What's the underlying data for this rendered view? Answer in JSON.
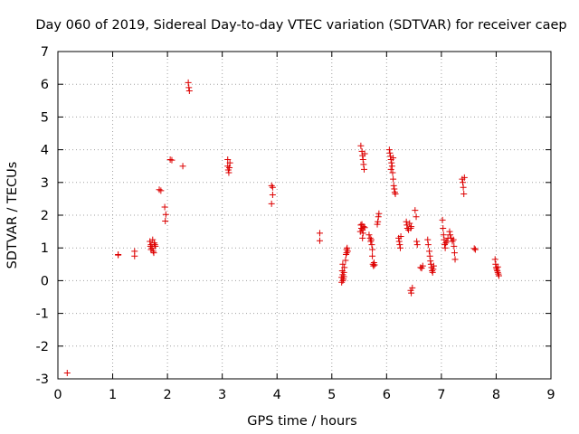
{
  "chart_data": {
    "type": "scatter",
    "title": "Day 060 of 2019, Sidereal Day-to-day VTEC variation (SDTVAR) for receiver caep",
    "xlabel": "GPS time / hours",
    "ylabel": "SDTVAR / TECUs",
    "xlim": [
      0,
      9
    ],
    "ylim": [
      -3,
      7
    ],
    "x_ticks": [
      0,
      1,
      2,
      3,
      4,
      5,
      6,
      7,
      8,
      9
    ],
    "y_ticks": [
      -3,
      -2,
      -1,
      0,
      1,
      2,
      3,
      4,
      5,
      6,
      7
    ],
    "x_tick_labels": [
      "0",
      "1",
      "2",
      "3",
      "4",
      "5",
      "6",
      "7",
      "8",
      "9"
    ],
    "y_tick_labels": [
      "-3",
      "-2",
      "-1",
      "0",
      "1",
      "2",
      "3",
      "4",
      "5",
      "6",
      "7"
    ],
    "grid": true,
    "marker": "+",
    "color": "#dd0000",
    "series": [
      {
        "name": "SDTVAR",
        "points": [
          [
            0.17,
            -2.82
          ],
          [
            1.1,
            0.78
          ],
          [
            1.1,
            0.8
          ],
          [
            1.4,
            0.75
          ],
          [
            1.4,
            0.9
          ],
          [
            1.68,
            1.2
          ],
          [
            1.7,
            1.1
          ],
          [
            1.72,
            1.0
          ],
          [
            1.74,
            0.9
          ],
          [
            1.76,
            1.15
          ],
          [
            1.7,
            0.95
          ],
          [
            1.73,
            1.25
          ],
          [
            1.78,
            1.05
          ],
          [
            1.69,
            1.05
          ],
          [
            1.75,
            0.85
          ],
          [
            1.77,
            1.1
          ],
          [
            1.85,
            2.78
          ],
          [
            1.88,
            2.75
          ],
          [
            1.95,
            2.25
          ],
          [
            1.96,
            1.82
          ],
          [
            1.97,
            2.02
          ],
          [
            2.05,
            3.7
          ],
          [
            2.08,
            3.68
          ],
          [
            2.28,
            3.5
          ],
          [
            2.38,
            6.05
          ],
          [
            2.39,
            5.9
          ],
          [
            2.4,
            5.8
          ],
          [
            3.1,
            3.7
          ],
          [
            3.1,
            3.5
          ],
          [
            3.12,
            3.3
          ],
          [
            3.13,
            3.45
          ],
          [
            3.14,
            3.6
          ],
          [
            3.11,
            3.38
          ],
          [
            3.9,
            2.9
          ],
          [
            3.92,
            2.85
          ],
          [
            3.9,
            2.35
          ],
          [
            3.92,
            2.62
          ],
          [
            4.78,
            1.45
          ],
          [
            4.78,
            1.22
          ],
          [
            5.18,
            0.1
          ],
          [
            5.18,
            -0.05
          ],
          [
            5.19,
            0.3
          ],
          [
            5.2,
            0.5
          ],
          [
            5.2,
            0.18
          ],
          [
            5.21,
            0.05
          ],
          [
            5.22,
            0.25
          ],
          [
            5.23,
            0.4
          ],
          [
            5.2,
            0.0
          ],
          [
            5.22,
            0.12
          ],
          [
            5.25,
            0.62
          ],
          [
            5.26,
            0.8
          ],
          [
            5.27,
            0.95
          ],
          [
            5.28,
            1.0
          ],
          [
            5.27,
            0.85
          ],
          [
            5.29,
            0.9
          ],
          [
            5.52,
            1.5
          ],
          [
            5.53,
            1.7
          ],
          [
            5.54,
            1.6
          ],
          [
            5.55,
            1.72
          ],
          [
            5.56,
            1.55
          ],
          [
            5.57,
            1.45
          ],
          [
            5.58,
            1.65
          ],
          [
            5.6,
            1.62
          ],
          [
            5.56,
            1.3
          ],
          [
            5.53,
            4.12
          ],
          [
            5.55,
            3.95
          ],
          [
            5.56,
            3.82
          ],
          [
            5.57,
            3.7
          ],
          [
            5.58,
            3.55
          ],
          [
            5.59,
            3.4
          ],
          [
            5.6,
            3.88
          ],
          [
            5.68,
            1.4
          ],
          [
            5.7,
            1.3
          ],
          [
            5.71,
            1.2
          ],
          [
            5.72,
            1.25
          ],
          [
            5.73,
            1.1
          ],
          [
            5.74,
            0.95
          ],
          [
            5.74,
            0.75
          ],
          [
            5.75,
            0.5
          ],
          [
            5.76,
            0.45
          ],
          [
            5.77,
            0.55
          ],
          [
            5.78,
            0.48
          ],
          [
            5.83,
            1.72
          ],
          [
            5.84,
            1.8
          ],
          [
            5.85,
            1.95
          ],
          [
            5.86,
            2.05
          ],
          [
            6.05,
            4.0
          ],
          [
            6.06,
            3.9
          ],
          [
            6.07,
            3.8
          ],
          [
            6.08,
            3.7
          ],
          [
            6.09,
            3.6
          ],
          [
            6.1,
            3.5
          ],
          [
            6.11,
            3.3
          ],
          [
            6.12,
            3.1
          ],
          [
            6.13,
            2.9
          ],
          [
            6.14,
            2.8
          ],
          [
            6.15,
            2.7
          ],
          [
            6.16,
            2.65
          ],
          [
            6.12,
            3.75
          ],
          [
            6.08,
            3.4
          ],
          [
            6.22,
            1.3
          ],
          [
            6.23,
            1.2
          ],
          [
            6.24,
            1.1
          ],
          [
            6.25,
            1.0
          ],
          [
            6.26,
            1.35
          ],
          [
            6.36,
            1.8
          ],
          [
            6.37,
            1.7
          ],
          [
            6.38,
            1.6
          ],
          [
            6.4,
            1.55
          ],
          [
            6.42,
            1.75
          ],
          [
            6.44,
            1.6
          ],
          [
            6.45,
            1.65
          ],
          [
            6.44,
            -0.3
          ],
          [
            6.45,
            -0.38
          ],
          [
            6.47,
            -0.22
          ],
          [
            6.52,
            2.15
          ],
          [
            6.54,
            1.95
          ],
          [
            6.55,
            1.2
          ],
          [
            6.56,
            1.1
          ],
          [
            6.62,
            0.4
          ],
          [
            6.64,
            0.38
          ],
          [
            6.66,
            0.45
          ],
          [
            6.75,
            1.25
          ],
          [
            6.76,
            1.1
          ],
          [
            6.78,
            0.9
          ],
          [
            6.79,
            0.75
          ],
          [
            6.8,
            0.6
          ],
          [
            6.81,
            0.5
          ],
          [
            6.82,
            0.4
          ],
          [
            6.83,
            0.3
          ],
          [
            6.84,
            0.25
          ],
          [
            6.85,
            0.35
          ],
          [
            6.86,
            0.45
          ],
          [
            7.02,
            1.85
          ],
          [
            7.03,
            1.6
          ],
          [
            7.04,
            1.4
          ],
          [
            7.05,
            1.25
          ],
          [
            7.06,
            1.1
          ],
          [
            7.07,
            1.0
          ],
          [
            7.08,
            1.15
          ],
          [
            7.1,
            1.2
          ],
          [
            7.12,
            1.3
          ],
          [
            7.15,
            1.5
          ],
          [
            7.16,
            1.4
          ],
          [
            7.18,
            1.3
          ],
          [
            7.2,
            1.2
          ],
          [
            7.22,
            1.25
          ],
          [
            7.23,
            1.05
          ],
          [
            7.24,
            0.85
          ],
          [
            7.25,
            0.65
          ],
          [
            7.38,
            3.1
          ],
          [
            7.39,
            3.0
          ],
          [
            7.4,
            2.85
          ],
          [
            7.41,
            2.65
          ],
          [
            7.42,
            3.15
          ],
          [
            7.6,
            0.98
          ],
          [
            7.62,
            0.95
          ],
          [
            7.98,
            0.65
          ],
          [
            7.99,
            0.5
          ],
          [
            8.0,
            0.4
          ],
          [
            8.01,
            0.35
          ],
          [
            8.02,
            0.3
          ],
          [
            8.03,
            0.25
          ],
          [
            8.04,
            0.2
          ],
          [
            8.05,
            0.15
          ],
          [
            8.03,
            0.42
          ]
        ]
      }
    ]
  }
}
